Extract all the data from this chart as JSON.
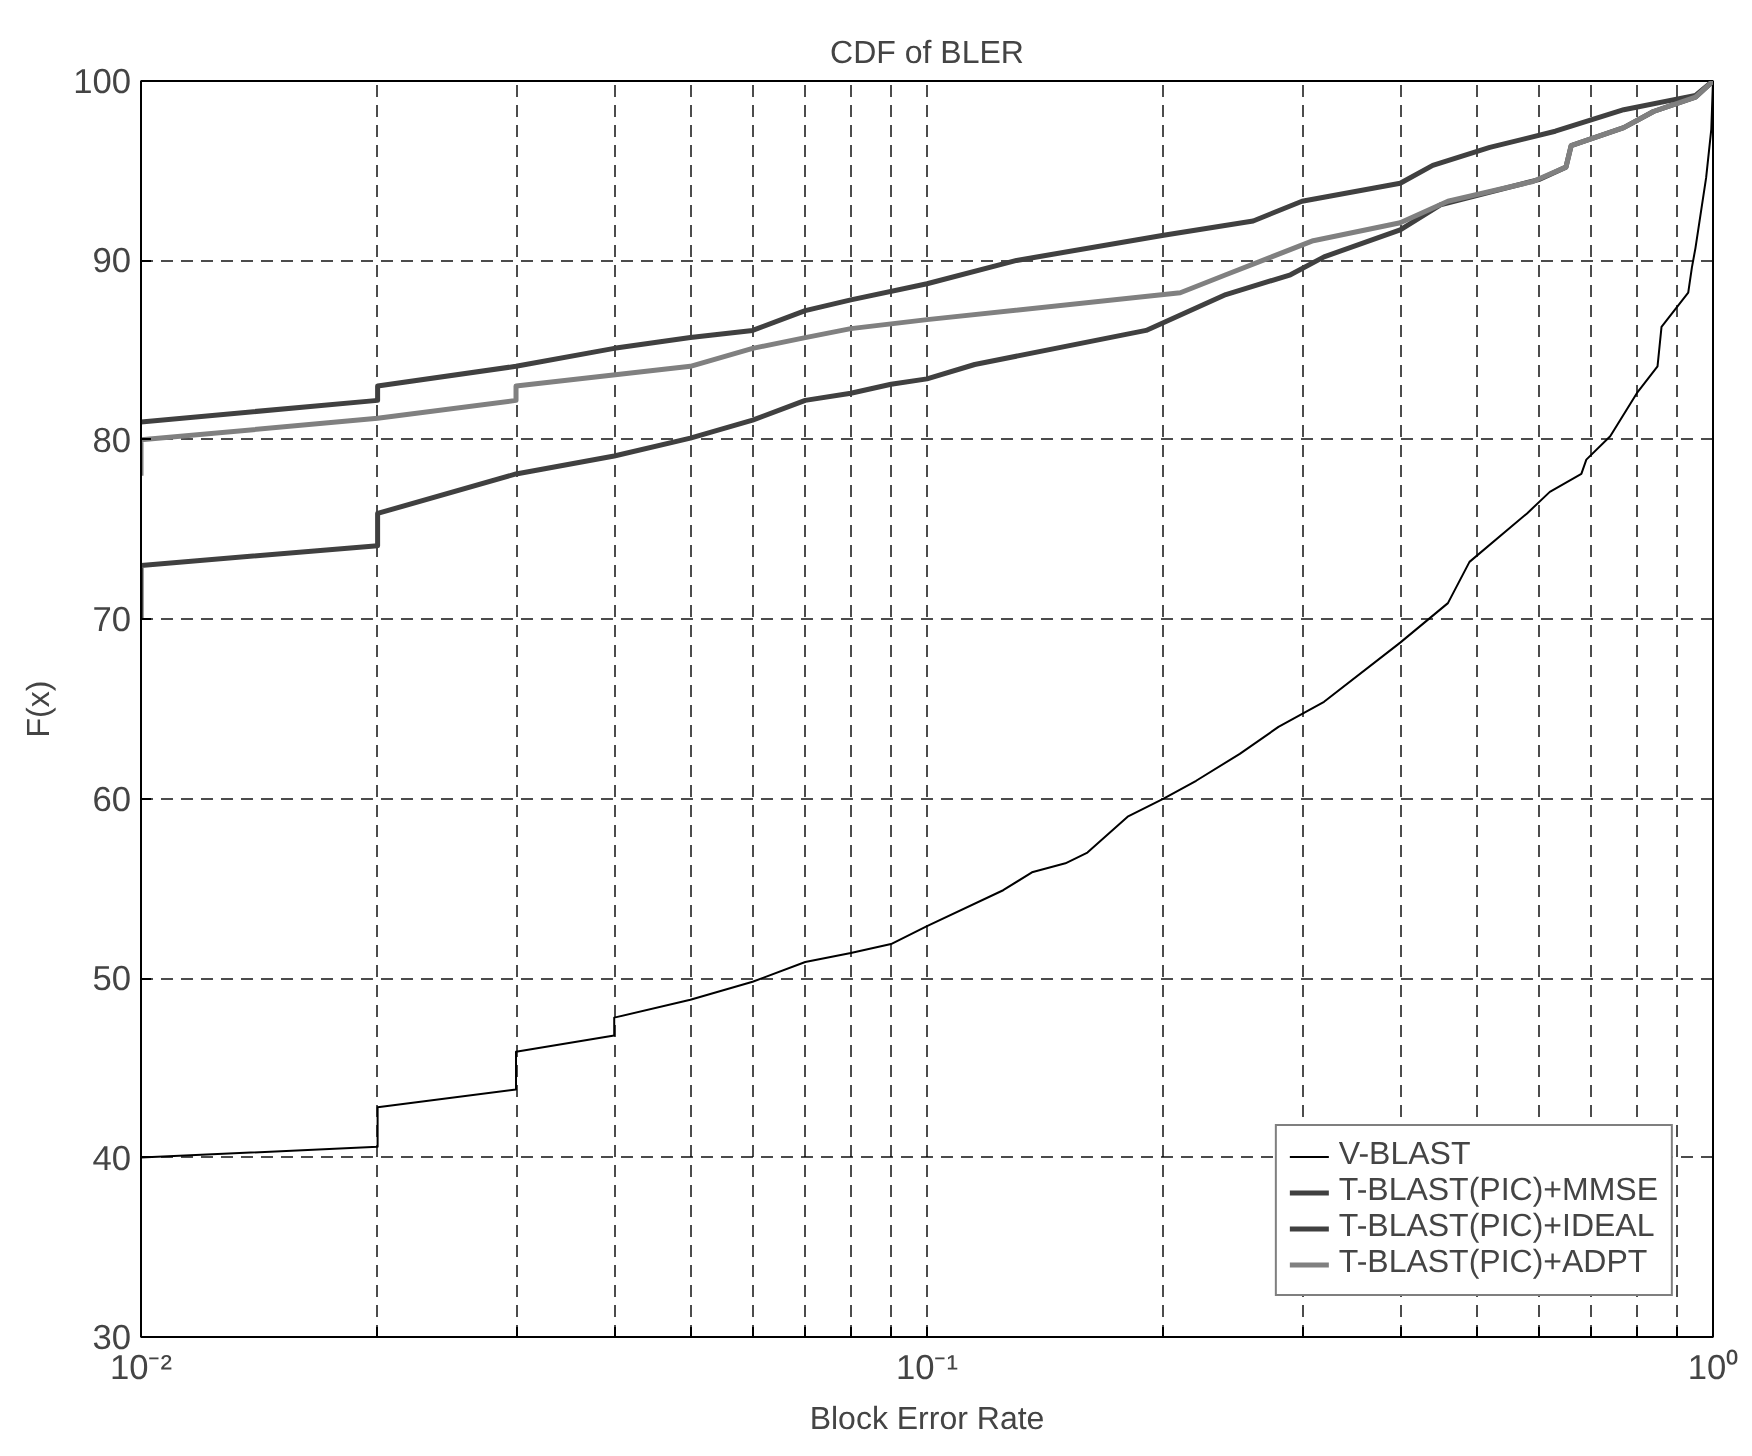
{
  "chart_data": {
    "type": "line",
    "title": "CDF of BLER",
    "xlabel": "Block Error Rate",
    "ylabel": "F(x)",
    "log": "x",
    "grid": true,
    "legend": "bottom right",
    "line_style": "solid",
    "marker": "none",
    "xlim": [
      0.01,
      1
    ],
    "ylim": [
      30,
      100
    ],
    "xticks": [
      {
        "value": 0.01,
        "label": "10⁻²"
      },
      {
        "value": 0.02,
        "label": null
      },
      {
        "value": 0.03,
        "label": null
      },
      {
        "value": 0.04,
        "label": null
      },
      {
        "value": 0.05,
        "label": null
      },
      {
        "value": 0.06,
        "label": null
      },
      {
        "value": 0.07,
        "label": null
      },
      {
        "value": 0.08,
        "label": null
      },
      {
        "value": 0.09,
        "label": null
      },
      {
        "value": 0.1,
        "label": "10⁻¹"
      },
      {
        "value": 0.2,
        "label": null
      },
      {
        "value": 0.3,
        "label": null
      },
      {
        "value": 0.4,
        "label": null
      },
      {
        "value": 0.5,
        "label": null
      },
      {
        "value": 0.6,
        "label": null
      },
      {
        "value": 0.7,
        "label": null
      },
      {
        "value": 0.8,
        "label": null
      },
      {
        "value": 0.9,
        "label": null
      },
      {
        "value": 1,
        "label": "10⁰"
      }
    ],
    "yticks": [
      30,
      40,
      50,
      60,
      70,
      80,
      90,
      100
    ],
    "series": [
      {
        "name": "V-BLAST",
        "color": "#000000",
        "x": [
          0.01,
          0.02,
          0.02,
          0.03,
          0.03,
          0.04,
          0.04,
          0.05,
          0.06,
          0.07,
          0.08,
          0.09,
          0.1,
          0.125,
          0.136,
          0.15,
          0.16,
          0.18,
          0.2,
          0.22,
          0.25,
          0.28,
          0.32,
          0.4,
          0.46,
          0.49,
          0.58,
          0.62,
          0.68,
          0.69,
          0.74,
          0.8,
          0.85,
          0.86,
          0.93,
          0.94,
          0.95,
          0.98,
          0.995,
          1
        ],
        "values": [
          40,
          40.6,
          42.8,
          43.8,
          45.9,
          46.8,
          47.8,
          48.8,
          49.8,
          50.9,
          51.4,
          51.9,
          52.9,
          54.9,
          55.9,
          56.4,
          57,
          59,
          60,
          61,
          62.5,
          64,
          65.4,
          68.7,
          70.9,
          73.2,
          75.9,
          77.1,
          78.1,
          78.9,
          80.2,
          82.6,
          84.1,
          86.3,
          88.2,
          89.6,
          90.7,
          94.6,
          97.3,
          100
        ]
      },
      {
        "name": "T-BLAST(PIC)+MMSE",
        "color": "#404040",
        "x": [
          0.01,
          0.01,
          0.02,
          0.02,
          0.03,
          0.04,
          0.05,
          0.06,
          0.07,
          0.08,
          0.09,
          0.1,
          0.115,
          0.19,
          0.24,
          0.29,
          0.32,
          0.4,
          0.45,
          0.6,
          0.65,
          0.66,
          0.77,
          0.84,
          0.95,
          1
        ],
        "values": [
          70,
          73,
          74.1,
          75.9,
          78.1,
          79.1,
          80.1,
          81.1,
          82.2,
          82.6,
          83.1,
          83.4,
          84.2,
          86.1,
          88.1,
          89.2,
          90.2,
          91.7,
          93.1,
          94.5,
          95.2,
          96.4,
          97.4,
          98.3,
          99.1,
          100
        ]
      },
      {
        "name": "T-BLAST(PIC)+IDEAL",
        "color": "#404040",
        "x": [
          0.01,
          0.02,
          0.02,
          0.03,
          0.04,
          0.05,
          0.06,
          0.07,
          0.08,
          0.1,
          0.13,
          0.2,
          0.26,
          0.3,
          0.4,
          0.44,
          0.52,
          0.63,
          0.77,
          0.95,
          1
        ],
        "values": [
          81,
          82.2,
          83,
          84.1,
          85.1,
          85.7,
          86.1,
          87.2,
          87.8,
          88.7,
          90,
          91.4,
          92.2,
          93.3,
          94.3,
          95.3,
          96.3,
          97.2,
          98.4,
          99.2,
          100
        ]
      },
      {
        "name": "T-BLAST(PIC)+ADPT",
        "color": "#808080",
        "x": [
          0.01,
          0.01,
          0.02,
          0.03,
          0.03,
          0.05,
          0.06,
          0.07,
          0.08,
          0.1,
          0.21,
          0.24,
          0.31,
          0.4,
          0.46,
          0.59,
          0.65,
          0.66,
          0.77,
          0.84,
          0.95,
          1
        ],
        "values": [
          78,
          80,
          81.2,
          82.2,
          83,
          84.1,
          85.1,
          85.7,
          86.2,
          86.7,
          88.2,
          89.2,
          91.1,
          92.1,
          93.3,
          94.4,
          95.2,
          96.4,
          97.4,
          98.3,
          99.1,
          100
        ]
      }
    ]
  }
}
